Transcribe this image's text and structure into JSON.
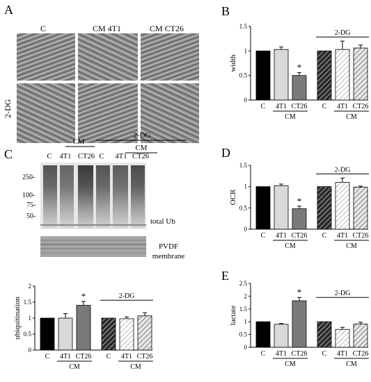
{
  "panels": {
    "a": "A",
    "b": "B",
    "c": "C",
    "d": "D",
    "e": "E"
  },
  "micrographs": {
    "columns": [
      "C",
      "CM 4T1",
      "CM CT26"
    ],
    "row_label": "2-DG"
  },
  "western": {
    "cm_label": "CM",
    "dg_label": "2-DG",
    "lanes": [
      "C",
      "4T1",
      "CT26",
      "C",
      "4T1",
      "CT26"
    ],
    "mw_markers": [
      "250-",
      "100-",
      "75-",
      "50-"
    ],
    "blot_label": "total Ub",
    "membrane_label_1": "PVDF",
    "membrane_label_2": "membrane"
  },
  "colors": {
    "control": "#000000",
    "cm_4t1": "#d9d9d9",
    "cm_ct26": "#7a7a7a",
    "hatch": "#000000"
  },
  "chart_data": [
    {
      "id": "B",
      "type": "bar",
      "ylabel": "width",
      "ylim": [
        0,
        1.5
      ],
      "yticks": [
        "0",
        "0.5",
        "1",
        "1.5"
      ],
      "categories": [
        "C",
        "4T1",
        "CT26",
        "C",
        "4T1",
        "CT26"
      ],
      "values": [
        1.0,
        1.03,
        0.5,
        1.0,
        1.03,
        1.06
      ],
      "errors": [
        0,
        0.05,
        0.06,
        0,
        0.17,
        0.06
      ],
      "significant": [
        false,
        false,
        true,
        false,
        false,
        false
      ],
      "sig_marker": "*",
      "group_labels": [
        "CM",
        "CM"
      ],
      "treatment_label": "2-DG"
    },
    {
      "id": "C",
      "type": "bar",
      "ylabel": "ubiquitination",
      "ylim": [
        0,
        2
      ],
      "yticks": [
        "0",
        "0.5",
        "1",
        "1.5",
        "2"
      ],
      "categories": [
        "C",
        "4T1",
        "CT26",
        "C",
        "4T1",
        "CT26"
      ],
      "values": [
        1.0,
        1.0,
        1.4,
        1.0,
        0.98,
        1.07
      ],
      "errors": [
        0,
        0.14,
        0.12,
        0,
        0.06,
        0.1
      ],
      "significant": [
        false,
        false,
        true,
        false,
        false,
        false
      ],
      "sig_marker": "*",
      "group_labels": [
        "CM",
        "CM"
      ],
      "treatment_label": "2-DG"
    },
    {
      "id": "D",
      "type": "bar",
      "ylabel": "OCR",
      "ylim": [
        0,
        1.5
      ],
      "yticks": [
        "0",
        "0.5",
        "1",
        "1.5"
      ],
      "categories": [
        "C",
        "4T1",
        "CT26",
        "C",
        "4T1",
        "CT26"
      ],
      "values": [
        1.0,
        1.02,
        0.48,
        1.0,
        1.1,
        0.99
      ],
      "errors": [
        0,
        0.04,
        0.06,
        0,
        0.1,
        0.02
      ],
      "significant": [
        false,
        false,
        true,
        false,
        false,
        false
      ],
      "sig_marker": "*",
      "group_labels": [
        "CM",
        "CM"
      ],
      "treatment_label": "2-DG"
    },
    {
      "id": "E",
      "type": "bar",
      "ylabel": "lactate",
      "ylim": [
        0,
        2.5
      ],
      "yticks": [
        "0",
        "0.5",
        "1",
        "1.5",
        "2",
        "2.5"
      ],
      "categories": [
        "C",
        "4T1",
        "CT26",
        "C",
        "4T1",
        "CT26"
      ],
      "values": [
        1.0,
        0.9,
        1.82,
        1.0,
        0.7,
        0.91
      ],
      "errors": [
        0,
        0.03,
        0.13,
        0,
        0.08,
        0.07
      ],
      "significant": [
        false,
        false,
        true,
        false,
        false,
        false
      ],
      "sig_marker": "*",
      "group_labels": [
        "CM",
        "CM"
      ],
      "treatment_label": "2-DG"
    }
  ]
}
